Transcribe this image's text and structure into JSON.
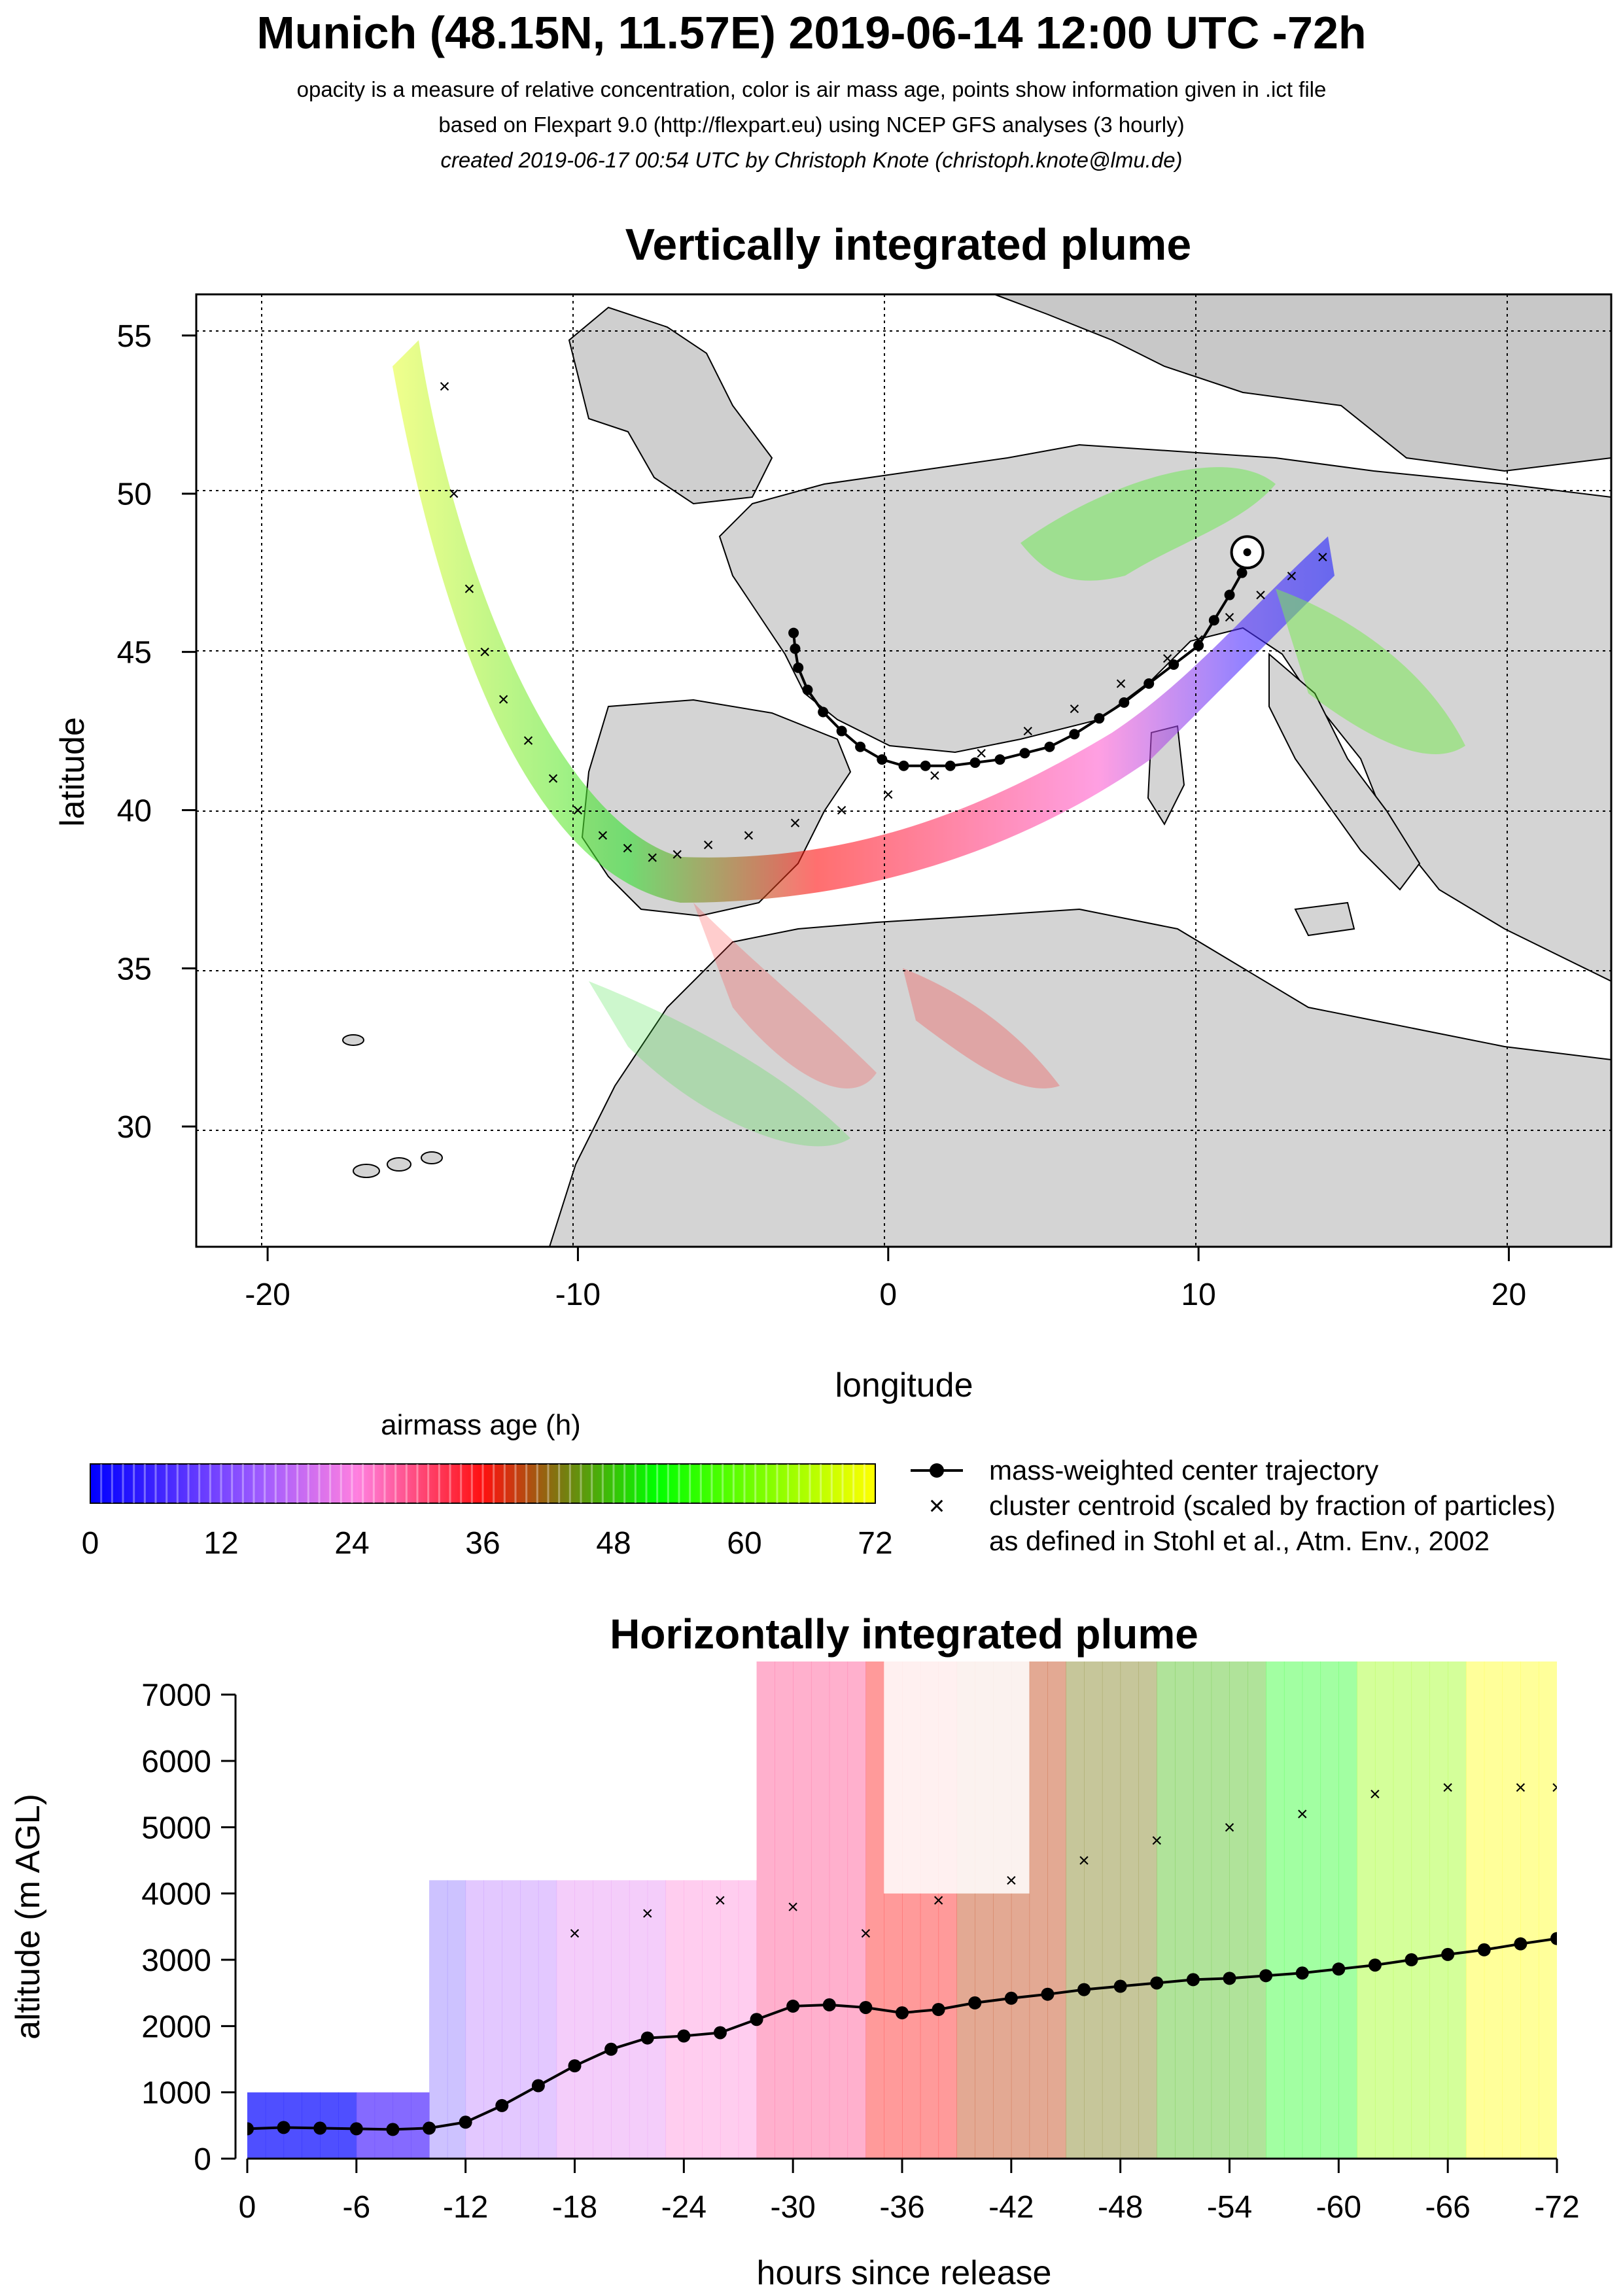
{
  "header": {
    "title": "Munich (48.15N, 11.57E) 2019-06-14 12:00 UTC -72h",
    "line1": "opacity is a measure of relative concentration, color is air mass age, points show information given in .ict file",
    "line2": "based on Flexpart 9.0 (http://flexpart.eu) using NCEP GFS analyses (3 hourly)",
    "line3": "created 2019-06-17 00:54 UTC by Christoph Knote (christoph.knote@lmu.de)"
  },
  "map_panel": {
    "title": "Vertically integrated plume",
    "xlabel": "longitude",
    "ylabel": "latitude",
    "release_point": {
      "lon": 11.57,
      "lat": 48.15
    }
  },
  "colorbar": {
    "title": "airmass age (h)",
    "ticks": [
      "0",
      "12",
      "24",
      "36",
      "48",
      "60",
      "72"
    ]
  },
  "legend": {
    "center_label": "mass-weighted center trajectory",
    "cluster_label": "cluster centroid (scaled by fraction of particles)",
    "cluster_label2": "as defined in Stohl et al., Atm. Env., 2002"
  },
  "profile_panel": {
    "title": "Horizontally integrated plume",
    "xlabel": "hours since release",
    "ylabel": "altitude (m AGL)"
  },
  "colors": {
    "age_scale": [
      "#0000ff",
      "#8f4fff",
      "#ff80ff",
      "#ff0000",
      "#00ff00",
      "#ffff00"
    ],
    "land": "#d8d8d8",
    "grid": "#000000"
  },
  "chart_data": [
    {
      "type": "line",
      "title": "Vertically integrated plume",
      "xlabel": "longitude",
      "ylabel": "latitude",
      "xlim": [
        -22.3,
        23.3
      ],
      "ylim": [
        26.2,
        56.3
      ],
      "xticks": [
        "-20",
        "-10",
        "0",
        "10",
        "20"
      ],
      "yticks": [
        "30",
        "35",
        "40",
        "45",
        "50",
        "55"
      ],
      "grid": true,
      "series": [
        {
          "name": "mass-weighted center trajectory",
          "x": [
            11.6,
            11.4,
            11.0,
            10.5,
            10.0,
            9.2,
            8.4,
            7.6,
            6.8,
            6.0,
            5.2,
            4.4,
            3.6,
            2.8,
            2.0,
            1.2,
            0.5,
            -0.2,
            -0.9,
            -1.5,
            -2.1,
            -2.6,
            -2.9,
            -3.0,
            -3.05
          ],
          "y": [
            48.1,
            47.5,
            46.8,
            46.0,
            45.2,
            44.6,
            44.0,
            43.4,
            42.9,
            42.4,
            42.0,
            41.8,
            41.6,
            41.5,
            41.4,
            41.4,
            41.4,
            41.6,
            42.0,
            42.5,
            43.1,
            43.8,
            44.5,
            45.1,
            45.6
          ]
        },
        {
          "name": "cluster centroid",
          "x": [
            -14.3,
            -14.0,
            -13.5,
            -13.0,
            -12.4,
            -11.6,
            -10.8,
            -10.0,
            -9.2,
            -8.4,
            -7.6,
            -6.8,
            -5.8,
            -4.5,
            -3.0,
            -1.5,
            0.0,
            1.5,
            3.0,
            4.5,
            6.0,
            7.5,
            9.0,
            10.0,
            11.0,
            12.0,
            13.0,
            14.0
          ],
          "y": [
            53.4,
            50.0,
            47.0,
            45.0,
            43.5,
            42.2,
            41.0,
            40.0,
            39.2,
            38.8,
            38.5,
            38.6,
            38.9,
            39.2,
            39.6,
            40.0,
            40.5,
            41.1,
            41.8,
            42.5,
            43.2,
            44.0,
            44.8,
            45.4,
            46.1,
            46.8,
            47.4,
            48.0
          ]
        }
      ]
    },
    {
      "type": "line",
      "title": "Horizontally integrated plume",
      "xlabel": "hours since release",
      "ylabel": "altitude (m AGL)",
      "xlim": [
        0,
        -72
      ],
      "ylim": [
        0,
        7500
      ],
      "xticks": [
        "0",
        "-6",
        "-12",
        "-18",
        "-24",
        "-30",
        "-36",
        "-42",
        "-48",
        "-54",
        "-60",
        "-66",
        "-72"
      ],
      "yticks": [
        "0",
        "1000",
        "2000",
        "3000",
        "4000",
        "5000",
        "6000",
        "7000"
      ],
      "series": [
        {
          "name": "mass-weighted center trajectory",
          "x": [
            0,
            -2,
            -4,
            -6,
            -8,
            -10,
            -12,
            -14,
            -16,
            -18,
            -20,
            -22,
            -24,
            -26,
            -28,
            -30,
            -32,
            -34,
            -36,
            -38,
            -40,
            -42,
            -44,
            -46,
            -48,
            -50,
            -52,
            -54,
            -56,
            -58,
            -60,
            -62,
            -64,
            -66,
            -68,
            -70,
            -72
          ],
          "y": [
            450,
            470,
            460,
            450,
            440,
            460,
            550,
            800,
            1100,
            1400,
            1650,
            1820,
            1850,
            1900,
            2100,
            2300,
            2320,
            2280,
            2200,
            2250,
            2350,
            2420,
            2480,
            2550,
            2600,
            2650,
            2700,
            2720,
            2760,
            2800,
            2860,
            2920,
            3000,
            3080,
            3150,
            3240,
            3320
          ]
        },
        {
          "name": "cluster centroid",
          "x": [
            -18,
            -22,
            -26,
            -30,
            -34,
            -38,
            -42,
            -46,
            -50,
            -54,
            -58,
            -62,
            -66,
            -70,
            -72
          ],
          "y": [
            3400,
            3700,
            3900,
            3800,
            3400,
            3900,
            4200,
            4500,
            4800,
            5000,
            5200,
            5500,
            5600,
            5600,
            5600
          ]
        }
      ]
    }
  ]
}
